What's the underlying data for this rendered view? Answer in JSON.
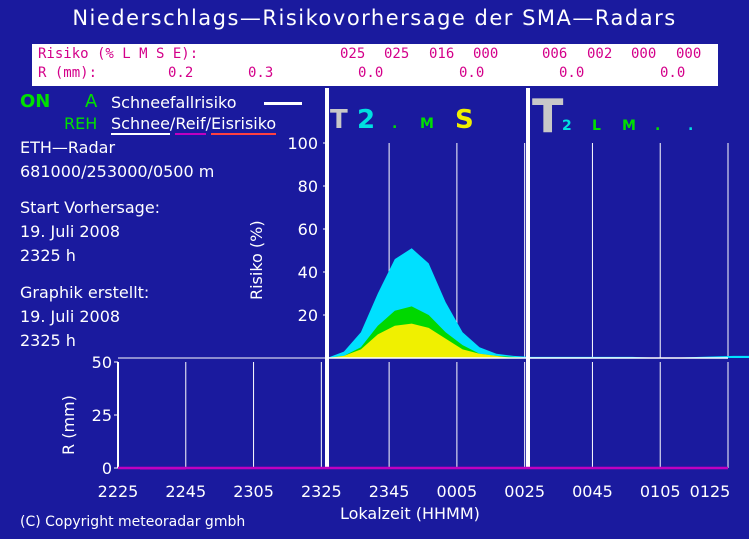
{
  "title": "Niederschlags—Risikovorhersage der SMA—Radars",
  "risk_table": {
    "row1_label": "Risiko (% L M S E):",
    "row2_label": "R (mm):",
    "row1_values": [
      "025",
      "025",
      "016",
      "000",
      "006",
      "002",
      "000",
      "000"
    ],
    "row2_values": [
      "0.2",
      "0.3",
      "0.0",
      "0.0",
      "0.0",
      "0.0"
    ]
  },
  "legend": {
    "status": "ON",
    "mode": "A",
    "snow_risk_label": "Schneefallrisiko",
    "reh": "REH",
    "snow": "Schnee",
    "sep1": "/",
    "frost": "Reif",
    "sep2": "/",
    "ice": "Eisrisiko"
  },
  "info": {
    "radar": "ETH—Radar",
    "coords": "681000/253000/0500 m",
    "start_label": "Start Vorhersage:",
    "start_date": "19. Juli 2008",
    "start_time": "2325 h",
    "created_label": "Graphik erstellt:",
    "created_date": "19. Juli 2008",
    "created_time": "2325 h"
  },
  "panel_markers": {
    "left": [
      {
        "text": "T",
        "color": "#c8c8c8",
        "size": "big"
      },
      {
        "text": "2",
        "color": "#00e0e0",
        "size": "big"
      },
      {
        "text": ".",
        "color": "#00e000",
        "size": "small"
      },
      {
        "text": "M",
        "color": "#00e000",
        "size": "small"
      },
      {
        "text": "S",
        "color": "#f0f000",
        "size": "big"
      }
    ],
    "right": [
      {
        "text": "T",
        "color": "#c8c8c8",
        "size": "huge"
      },
      {
        "text": "2",
        "color": "#00e0e0",
        "size": "small"
      },
      {
        "text": "L",
        "color": "#00e000",
        "size": "small"
      },
      {
        "text": "M",
        "color": "#00e000",
        "size": "small"
      },
      {
        "text": ".",
        "color": "#00e000",
        "size": "small"
      },
      {
        "text": ".",
        "color": "#00e0e0",
        "size": "small"
      }
    ]
  },
  "copyright": "(C) Copyright meteoradar gmbh",
  "colors": {
    "background": "#1a1a9e",
    "low": "#00e0ff",
    "medium": "#00d800",
    "strong": "#f0f000",
    "rain_line": "#c000c0"
  },
  "chart_data": [
    {
      "type": "area",
      "title": "",
      "ylabel": "Risiko (%)",
      "xlabel": "Lokalzeit (HHMM)",
      "ylim": [
        0,
        100
      ],
      "yticks": [
        "20",
        "40",
        "60",
        "80",
        "100"
      ],
      "x_minutes_after_2325": [
        0,
        5,
        10,
        15,
        20,
        25,
        30,
        35,
        40,
        45,
        50,
        55,
        60,
        70,
        80,
        90,
        100,
        110,
        120,
        130,
        140,
        150,
        160,
        170,
        180,
        190,
        200,
        210,
        220,
        230,
        240
      ],
      "series": [
        {
          "name": "L",
          "color": "#00e0ff",
          "values": [
            0,
            3,
            12,
            30,
            46,
            51,
            44,
            26,
            12,
            5,
            2,
            1,
            0.5,
            0.5,
            0.5,
            0.5,
            0,
            0.5,
            1,
            1,
            1,
            1.5,
            2,
            3,
            4,
            5,
            6,
            7,
            7,
            7,
            8
          ]
        },
        {
          "name": "M",
          "color": "#00d800",
          "values": [
            0,
            1,
            5,
            15,
            22,
            24,
            20,
            12,
            6,
            2,
            1,
            0.5,
            0,
            0,
            0,
            0,
            0,
            0,
            0,
            0,
            0,
            0.5,
            0.5,
            0.5,
            1,
            1,
            1,
            1,
            1,
            1,
            1
          ]
        },
        {
          "name": "S",
          "color": "#f0f000",
          "values": [
            0,
            1,
            4,
            11,
            15,
            16,
            14,
            9,
            4,
            2,
            1,
            0,
            0,
            0,
            0,
            0,
            0,
            0,
            0,
            0,
            0,
            0,
            0,
            0,
            0,
            0,
            0,
            0,
            0,
            0,
            0
          ]
        }
      ]
    },
    {
      "type": "line",
      "title": "",
      "ylabel": "R (mm)",
      "xlabel": "Lokalzeit (HHMM)",
      "ylim": [
        0,
        50
      ],
      "yticks": [
        "0",
        "25",
        "50"
      ],
      "categories": [
        "2225",
        "2245",
        "2305",
        "2325",
        "2345",
        "0005",
        "0025",
        "0045",
        "0105",
        "0125"
      ],
      "series": [
        {
          "name": "R (mm)",
          "color": "#c000c0",
          "values": [
            0,
            0,
            0,
            0,
            0,
            0,
            0,
            0,
            0,
            0
          ]
        }
      ]
    }
  ]
}
